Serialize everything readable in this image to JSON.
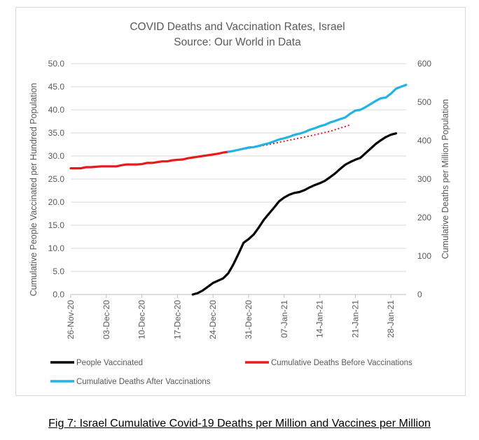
{
  "caption": "Fig 7: Israel Cumulative Covid-19 Deaths per Million and Vaccines per Million",
  "chart_data": {
    "type": "line",
    "title": "COVID Deaths and Vaccination Rates, Israel",
    "subtitle": "Source: Our World in Data",
    "ylabel": "Cumulative People Vaccinated per Hundred Population",
    "y2label": "Cumulative Deaths per Million Population",
    "ylim": [
      0,
      50
    ],
    "y2lim": [
      0,
      600
    ],
    "yticks": [
      "0.0",
      "5.0",
      "10.0",
      "15.0",
      "20.0",
      "25.0",
      "30.0",
      "35.0",
      "40.0",
      "45.0",
      "50.0"
    ],
    "y2ticks": [
      "0",
      "100",
      "200",
      "300",
      "400",
      "500",
      "600"
    ],
    "x_start": "2020-11-26",
    "x_end": "2021-01-31",
    "xticks": [
      "26-Nov-20",
      "03-Dec-20",
      "10-Dec-20",
      "17-Dec-20",
      "24-Dec-20",
      "31-Dec-20",
      "07-Jan-21",
      "14-Jan-21",
      "21-Jan-21",
      "28-Jan-21"
    ],
    "grid": true,
    "legend_position": "bottom",
    "series": [
      {
        "name": "People Vaccinated",
        "axis": "left",
        "color": "#000000",
        "style": "solid",
        "points": [
          [
            "2020-12-20",
            0.0
          ],
          [
            "2020-12-21",
            0.3
          ],
          [
            "2020-12-22",
            0.9
          ],
          [
            "2020-12-23",
            1.7
          ],
          [
            "2020-12-24",
            2.5
          ],
          [
            "2020-12-25",
            3.0
          ],
          [
            "2020-12-26",
            3.5
          ],
          [
            "2020-12-27",
            4.6
          ],
          [
            "2020-12-28",
            6.5
          ],
          [
            "2020-12-29",
            8.8
          ],
          [
            "2020-12-30",
            11.2
          ],
          [
            "2020-12-31",
            12.0
          ],
          [
            "2021-01-01",
            13.0
          ],
          [
            "2021-01-02",
            14.5
          ],
          [
            "2021-01-03",
            16.2
          ],
          [
            "2021-01-04",
            17.5
          ],
          [
            "2021-01-05",
            18.8
          ],
          [
            "2021-01-06",
            20.2
          ],
          [
            "2021-01-07",
            21.0
          ],
          [
            "2021-01-08",
            21.6
          ],
          [
            "2021-01-09",
            22.0
          ],
          [
            "2021-01-10",
            22.2
          ],
          [
            "2021-01-11",
            22.6
          ],
          [
            "2021-01-12",
            23.2
          ],
          [
            "2021-01-13",
            23.7
          ],
          [
            "2021-01-14",
            24.1
          ],
          [
            "2021-01-15",
            24.6
          ],
          [
            "2021-01-16",
            25.4
          ],
          [
            "2021-01-17",
            26.2
          ],
          [
            "2021-01-18",
            27.2
          ],
          [
            "2021-01-19",
            28.1
          ],
          [
            "2021-01-20",
            28.7
          ],
          [
            "2021-01-21",
            29.2
          ],
          [
            "2021-01-22",
            29.6
          ],
          [
            "2021-01-23",
            30.6
          ],
          [
            "2021-01-24",
            31.6
          ],
          [
            "2021-01-25",
            32.6
          ],
          [
            "2021-01-26",
            33.4
          ],
          [
            "2021-01-27",
            34.1
          ],
          [
            "2021-01-28",
            34.6
          ],
          [
            "2021-01-29",
            34.9
          ]
        ]
      },
      {
        "name": "Cumulative Deaths Before Vaccinations",
        "axis": "right",
        "color": "#e8191b",
        "style": "solid",
        "points": [
          [
            "2020-11-26",
            328
          ],
          [
            "2020-11-27",
            328
          ],
          [
            "2020-11-28",
            328
          ],
          [
            "2020-11-29",
            331
          ],
          [
            "2020-11-30",
            331
          ],
          [
            "2020-12-01",
            332
          ],
          [
            "2020-12-02",
            333
          ],
          [
            "2020-12-03",
            333
          ],
          [
            "2020-12-04",
            333
          ],
          [
            "2020-12-05",
            333
          ],
          [
            "2020-12-06",
            336
          ],
          [
            "2020-12-07",
            338
          ],
          [
            "2020-12-08",
            338
          ],
          [
            "2020-12-09",
            338
          ],
          [
            "2020-12-10",
            339
          ],
          [
            "2020-12-11",
            342
          ],
          [
            "2020-12-12",
            342
          ],
          [
            "2020-12-13",
            344
          ],
          [
            "2020-12-14",
            346
          ],
          [
            "2020-12-15",
            346
          ],
          [
            "2020-12-16",
            349
          ],
          [
            "2020-12-17",
            350
          ],
          [
            "2020-12-18",
            351
          ],
          [
            "2020-12-19",
            354
          ],
          [
            "2020-12-20",
            356
          ],
          [
            "2020-12-21",
            358
          ],
          [
            "2020-12-22",
            360
          ],
          [
            "2020-12-23",
            362
          ],
          [
            "2020-12-24",
            364
          ],
          [
            "2020-12-25",
            366
          ],
          [
            "2020-12-26",
            369
          ],
          [
            "2020-12-27",
            371
          ]
        ]
      },
      {
        "name": "Cumulative Deaths Before Vaccinations (trend)",
        "axis": "right",
        "color": "#e8191b",
        "style": "dotted",
        "legend": false,
        "points": [
          [
            "2020-12-27",
            371
          ],
          [
            "2020-12-31",
            380
          ],
          [
            "2021-01-04",
            390
          ],
          [
            "2021-01-08",
            401
          ],
          [
            "2021-01-12",
            412
          ],
          [
            "2021-01-16",
            424
          ],
          [
            "2021-01-20",
            441
          ]
        ]
      },
      {
        "name": "Cumulative Deaths After Vaccinations",
        "axis": "right",
        "color": "#1fb4e3",
        "style": "solid",
        "points": [
          [
            "2020-12-27",
            371
          ],
          [
            "2020-12-28",
            373
          ],
          [
            "2020-12-29",
            376
          ],
          [
            "2020-12-30",
            379
          ],
          [
            "2020-12-31",
            382
          ],
          [
            "2021-01-01",
            383
          ],
          [
            "2021-01-02",
            386
          ],
          [
            "2021-01-03",
            390
          ],
          [
            "2021-01-04",
            393
          ],
          [
            "2021-01-05",
            398
          ],
          [
            "2021-01-06",
            403
          ],
          [
            "2021-01-07",
            406
          ],
          [
            "2021-01-08",
            410
          ],
          [
            "2021-01-09",
            415
          ],
          [
            "2021-01-10",
            418
          ],
          [
            "2021-01-11",
            422
          ],
          [
            "2021-01-12",
            428
          ],
          [
            "2021-01-13",
            432
          ],
          [
            "2021-01-14",
            437
          ],
          [
            "2021-01-15",
            441
          ],
          [
            "2021-01-16",
            447
          ],
          [
            "2021-01-17",
            451
          ],
          [
            "2021-01-18",
            456
          ],
          [
            "2021-01-19",
            460
          ],
          [
            "2021-01-20",
            470
          ],
          [
            "2021-01-21",
            478
          ],
          [
            "2021-01-22",
            480
          ],
          [
            "2021-01-23",
            487
          ],
          [
            "2021-01-24",
            495
          ],
          [
            "2021-01-25",
            503
          ],
          [
            "2021-01-26",
            510
          ],
          [
            "2021-01-27",
            512
          ],
          [
            "2021-01-28",
            522
          ],
          [
            "2021-01-29",
            535
          ],
          [
            "2021-01-30",
            540
          ],
          [
            "2021-01-31",
            545
          ]
        ]
      }
    ]
  }
}
